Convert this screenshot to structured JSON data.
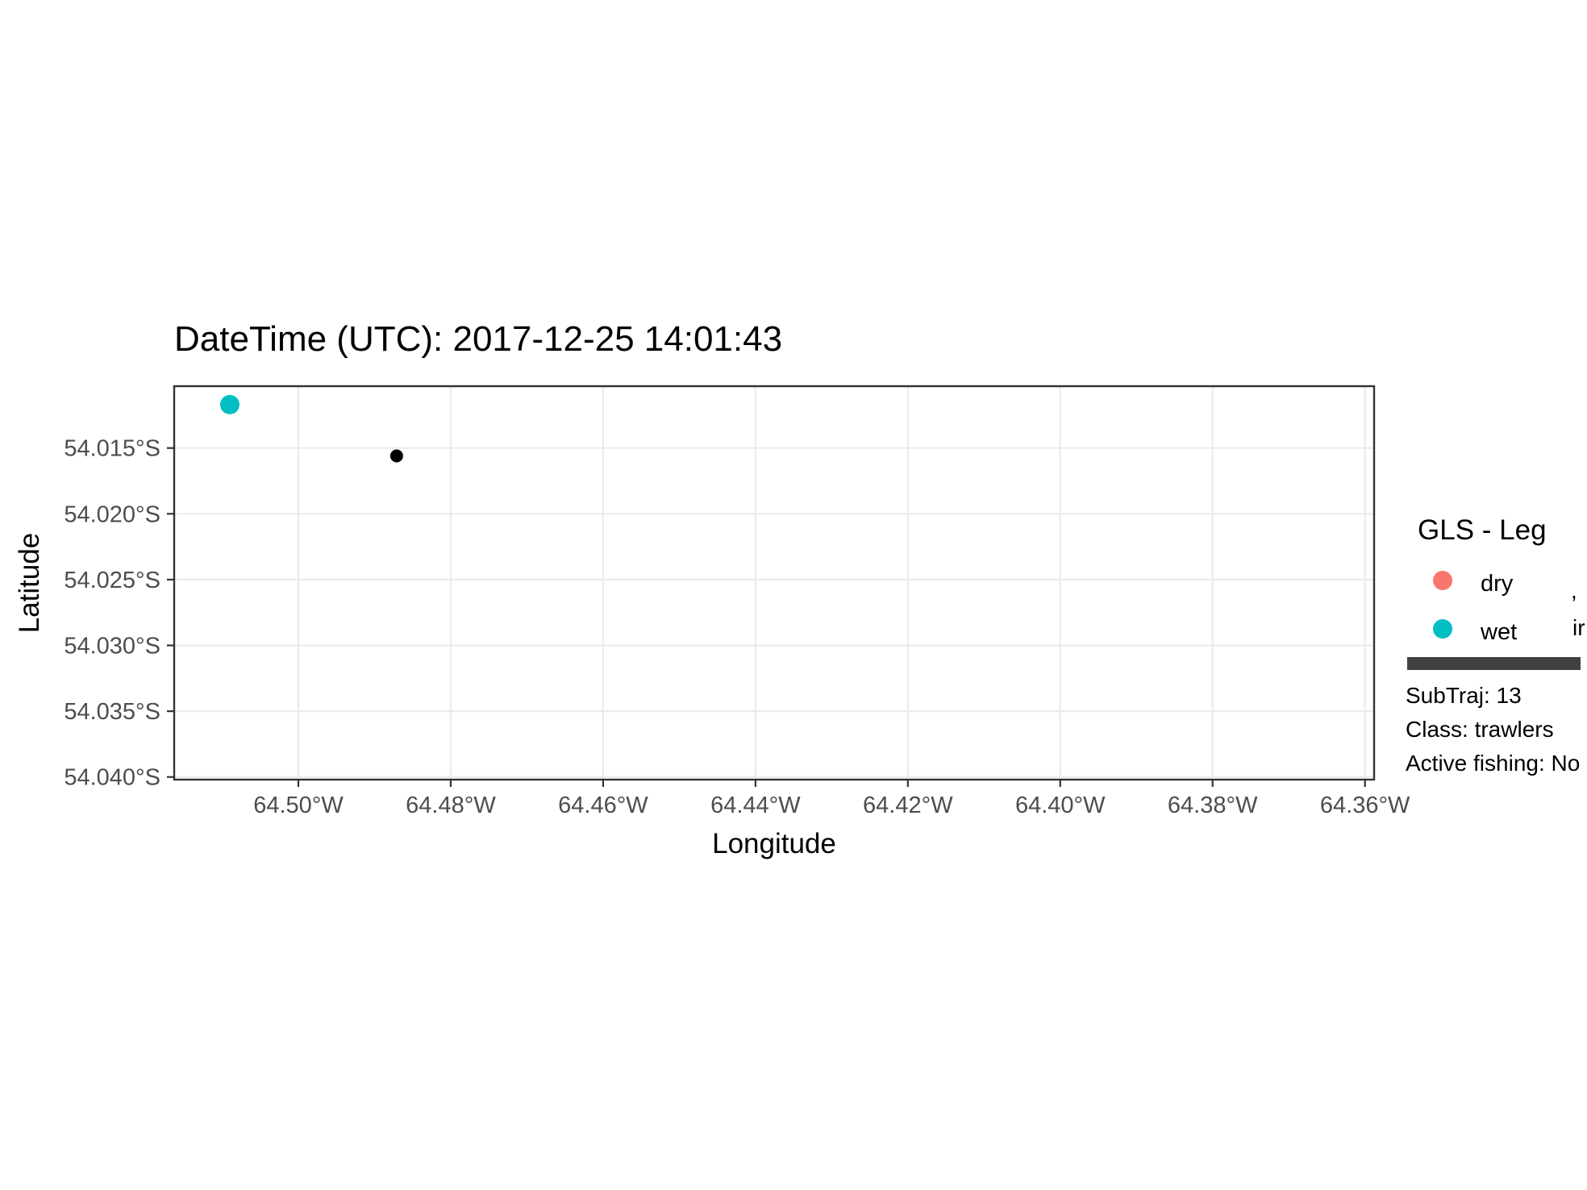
{
  "chart_data": {
    "type": "scatter",
    "title": "DateTime (UTC): 2017-12-25 14:01:43",
    "xlabel": "Longitude",
    "ylabel": "Latitude",
    "xlim": [
      -64.5163,
      -64.3588
    ],
    "ylim": [
      -54.0402,
      -54.0103
    ],
    "x_ticks": [
      {
        "value": -64.5,
        "label": "64.50°W"
      },
      {
        "value": -64.48,
        "label": "64.48°W"
      },
      {
        "value": -64.46,
        "label": "64.46°W"
      },
      {
        "value": -64.44,
        "label": "64.44°W"
      },
      {
        "value": -64.42,
        "label": "64.42°W"
      },
      {
        "value": -64.4,
        "label": "64.40°W"
      },
      {
        "value": -64.38,
        "label": "64.38°W"
      },
      {
        "value": -64.36,
        "label": "64.36°W"
      }
    ],
    "y_ticks": [
      {
        "value": -54.015,
        "label": "54.015°S"
      },
      {
        "value": -54.02,
        "label": "54.020°S"
      },
      {
        "value": -54.025,
        "label": "54.025°S"
      },
      {
        "value": -54.03,
        "label": "54.030°S"
      },
      {
        "value": -54.035,
        "label": "54.035°S"
      },
      {
        "value": -54.04,
        "label": "54.040°S"
      }
    ],
    "grid": true,
    "legend": {
      "title": "GLS - Leg",
      "placement": "right",
      "entries": [
        {
          "label": "dry",
          "color": "#F8766D"
        },
        {
          "label": "wet",
          "color": "#00BFC4"
        }
      ]
    },
    "series": [
      {
        "name": "wet",
        "color": "#00BFC4",
        "points": [
          {
            "x": -64.509,
            "y": -54.0117
          }
        ]
      },
      {
        "color": "#000000",
        "points": [
          {
            "x": -64.4871,
            "y": -54.0156
          }
        ]
      }
    ],
    "annotations": {
      "lines": [
        "SubTraj: 13",
        "Class: trawlers",
        "Active fishing: No"
      ],
      "clipped_fragments": [
        ",",
        "ir"
      ]
    }
  }
}
